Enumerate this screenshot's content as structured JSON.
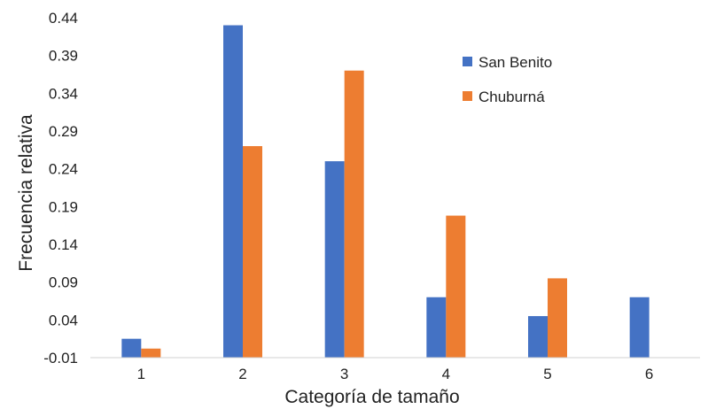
{
  "chart_data": {
    "type": "bar",
    "title": "",
    "xlabel": "Categoría de tamaño",
    "ylabel": "Frecuencia relativa",
    "categories": [
      "1",
      "2",
      "3",
      "4",
      "5",
      "6"
    ],
    "yticks": [
      "-0.01",
      "0.04",
      "0.09",
      "0.14",
      "0.19",
      "0.24",
      "0.29",
      "0.34",
      "0.39",
      "0.44"
    ],
    "ylim": [
      -0.01,
      0.44
    ],
    "grid": false,
    "legend_position": "top-right",
    "series": [
      {
        "name": "San Benito",
        "color": "#4472C4",
        "values": [
          0.015,
          0.43,
          0.25,
          0.07,
          0.045,
          0.07
        ]
      },
      {
        "name": "Chuburná",
        "color": "#ED7D31",
        "values": [
          0.002,
          0.27,
          0.37,
          0.178,
          0.095,
          null
        ]
      }
    ]
  }
}
